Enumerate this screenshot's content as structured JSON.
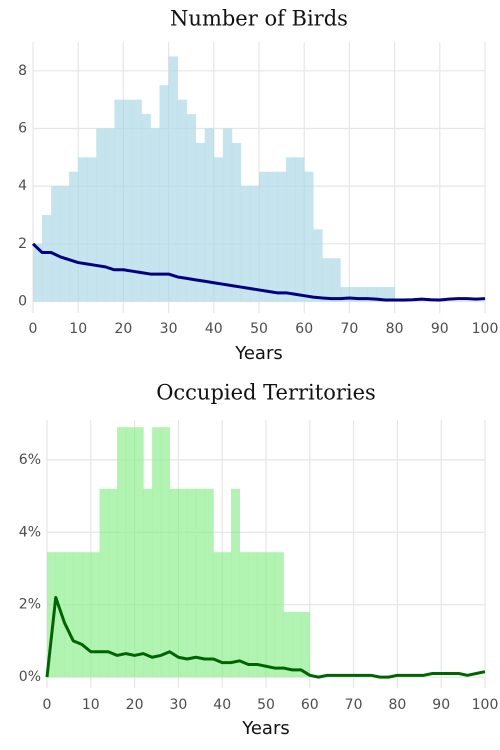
{
  "chart_data": [
    {
      "type": "area",
      "title": "Number of Birds",
      "x_label": "Years",
      "x": [
        0,
        2,
        4,
        6,
        8,
        10,
        12,
        14,
        16,
        18,
        20,
        22,
        24,
        26,
        28,
        30,
        32,
        34,
        36,
        38,
        40,
        42,
        44,
        46,
        48,
        50,
        52,
        54,
        56,
        58,
        60,
        62,
        64,
        66,
        68,
        70,
        72,
        74,
        76,
        78,
        80,
        82,
        84,
        86,
        88,
        90,
        92,
        94,
        96,
        98,
        100
      ],
      "series": [
        {
          "style": "step-area",
          "color": "#add8e6",
          "values": [
            2,
            3,
            4,
            4,
            4.5,
            5,
            5,
            6,
            6,
            7,
            7,
            7,
            6.5,
            6,
            7.5,
            8.5,
            7,
            6.5,
            5.5,
            6,
            5,
            6,
            5.5,
            4,
            4,
            4.5,
            4.5,
            4.5,
            5,
            5,
            4.5,
            2.5,
            1.5,
            1.5,
            0.5,
            0.5,
            0.5,
            0.5,
            0.5,
            0.5,
            0,
            0,
            0,
            0,
            0,
            0,
            0,
            0,
            0,
            0,
            0
          ]
        },
        {
          "style": "line",
          "color": "#000080",
          "values": [
            2,
            1.7,
            1.7,
            1.55,
            1.45,
            1.35,
            1.3,
            1.25,
            1.2,
            1.1,
            1.1,
            1.05,
            1,
            0.95,
            0.95,
            0.95,
            0.85,
            0.8,
            0.75,
            0.7,
            0.65,
            0.6,
            0.55,
            0.5,
            0.45,
            0.4,
            0.35,
            0.3,
            0.3,
            0.25,
            0.2,
            0.15,
            0.12,
            0.1,
            0.1,
            0.12,
            0.1,
            0.1,
            0.08,
            0.05,
            0.05,
            0.05,
            0.06,
            0.08,
            0.06,
            0.05,
            0.08,
            0.1,
            0.1,
            0.08,
            0.1
          ]
        }
      ],
      "xlim": [
        0,
        100
      ],
      "xticks": [
        0,
        10,
        20,
        30,
        40,
        50,
        60,
        70,
        80,
        90,
        100
      ],
      "ylim": [
        -0.4,
        9
      ],
      "yticks": [
        0,
        2,
        4,
        6,
        8
      ],
      "grid": true
    },
    {
      "type": "area",
      "title": "Occupied Territories",
      "x_label": "Years",
      "x": [
        0,
        2,
        4,
        6,
        8,
        10,
        12,
        14,
        16,
        18,
        20,
        22,
        24,
        26,
        28,
        30,
        32,
        34,
        36,
        38,
        40,
        42,
        44,
        46,
        48,
        50,
        52,
        54,
        56,
        58,
        60,
        62,
        64,
        66,
        68,
        70,
        72,
        74,
        76,
        78,
        80,
        82,
        84,
        86,
        88,
        90,
        92,
        94,
        96,
        98,
        100
      ],
      "series": [
        {
          "style": "step-area",
          "color": "#90ee90",
          "values": [
            3.45,
            3.45,
            3.45,
            3.45,
            3.45,
            3.45,
            5.2,
            5.2,
            6.9,
            6.9,
            6.9,
            5.2,
            6.9,
            6.9,
            5.2,
            5.2,
            5.2,
            5.2,
            5.2,
            3.45,
            3.45,
            5.2,
            3.45,
            3.45,
            3.45,
            3.45,
            3.45,
            1.8,
            1.8,
            1.8,
            0,
            0,
            0,
            0,
            0,
            0,
            0,
            0,
            0,
            0,
            0,
            0,
            0,
            0,
            0,
            0,
            0,
            0,
            0,
            0,
            0
          ]
        },
        {
          "style": "line",
          "color": "#006400",
          "values": [
            0,
            2.2,
            1.5,
            1,
            0.9,
            0.7,
            0.7,
            0.7,
            0.6,
            0.65,
            0.6,
            0.65,
            0.55,
            0.6,
            0.7,
            0.55,
            0.5,
            0.55,
            0.5,
            0.5,
            0.4,
            0.4,
            0.45,
            0.35,
            0.35,
            0.3,
            0.25,
            0.25,
            0.2,
            0.2,
            0.05,
            0,
            0.05,
            0.05,
            0.05,
            0.05,
            0.05,
            0.05,
            0,
            0,
            0.05,
            0.05,
            0.05,
            0.05,
            0.1,
            0.1,
            0.1,
            0.1,
            0.05,
            0.1,
            0.15
          ]
        }
      ],
      "xlim": [
        0,
        100
      ],
      "xticks": [
        0,
        10,
        20,
        30,
        40,
        50,
        60,
        70,
        80,
        90,
        100
      ],
      "ylim": [
        -0.3,
        7.1
      ],
      "yticks": [
        {
          "value": 0,
          "label": "0%"
        },
        {
          "value": 2,
          "label": "2%"
        },
        {
          "value": 4,
          "label": "4%"
        },
        {
          "value": 6,
          "label": "6%"
        }
      ],
      "grid": true
    }
  ]
}
